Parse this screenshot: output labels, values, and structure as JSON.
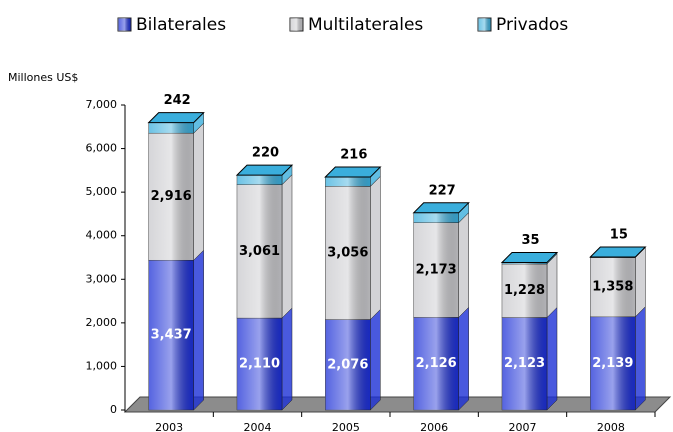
{
  "chart_data": {
    "type": "bar3d_stacked",
    "y_axis_label": "Millones US$",
    "categories": [
      "2003",
      "2004",
      "2005",
      "2006",
      "2007",
      "2008"
    ],
    "series": [
      {
        "name": "Bilaterales",
        "color": "#1c2fd6",
        "values": [
          3437,
          2110,
          2076,
          2126,
          2123,
          2139
        ],
        "value_labels": [
          "3,437",
          "2,110",
          "2,076",
          "2,126",
          "2,123",
          "2,139"
        ]
      },
      {
        "name": "Multilaterales",
        "color": "#c8c8cc",
        "values": [
          2916,
          3061,
          3056,
          2173,
          1228,
          1358
        ],
        "value_labels": [
          "2,916",
          "3,061",
          "3,056",
          "2,173",
          "1,228",
          "1,358"
        ]
      },
      {
        "name": "Privados",
        "color": "#3aaedc",
        "values": [
          242,
          220,
          216,
          227,
          35,
          15
        ]
      }
    ],
    "ylim": [
      0,
      7000
    ],
    "yticks": [
      0,
      {
        "value": 1000,
        "label": "1,000"
      },
      {
        "value": 2000,
        "label": "2,000"
      },
      {
        "value": 3000,
        "label": "3,000"
      },
      {
        "value": 4000,
        "label": "4,000"
      },
      {
        "value": 5000,
        "label": "5,000"
      },
      {
        "value": 6000,
        "label": "6,000"
      },
      {
        "value": 7000,
        "label": "7,000"
      }
    ]
  }
}
